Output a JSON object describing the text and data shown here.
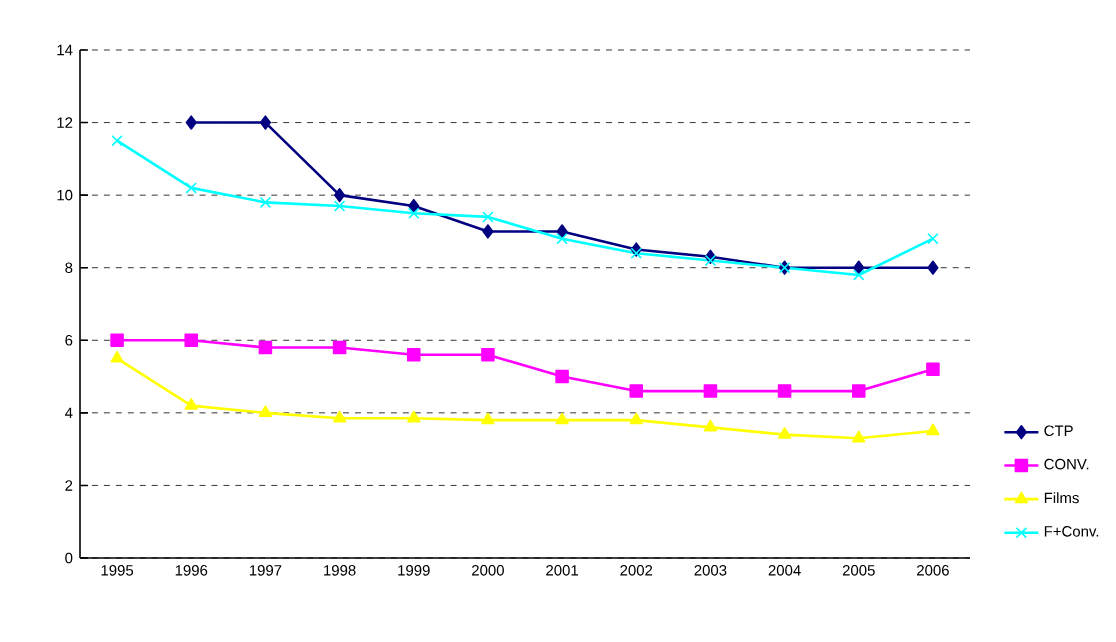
{
  "chart_data": {
    "type": "line",
    "categories": [
      "1995",
      "1996",
      "1997",
      "1998",
      "1999",
      "2000",
      "2001",
      "2002",
      "2003",
      "2004",
      "2005",
      "2006"
    ],
    "series": [
      {
        "name": "CTP",
        "color": "#000080",
        "marker": "diamond",
        "values": [
          null,
          12,
          12,
          10,
          9.7,
          9,
          9,
          8.5,
          8.3,
          8,
          8,
          8
        ]
      },
      {
        "name": "CONV.",
        "color": "#ff00ff",
        "marker": "square",
        "values": [
          6,
          6,
          5.8,
          5.8,
          5.6,
          5.6,
          5,
          4.6,
          4.6,
          4.6,
          4.6,
          5.2
        ]
      },
      {
        "name": "Films",
        "color": "#ffff00",
        "marker": "triangle",
        "values": [
          5.5,
          4.2,
          4.0,
          3.85,
          3.85,
          3.8,
          3.8,
          3.8,
          3.6,
          3.4,
          3.3,
          3.5
        ]
      },
      {
        "name": "F+Conv.",
        "color": "#00ffff",
        "marker": "cross",
        "values": [
          11.5,
          10.2,
          9.8,
          9.7,
          9.5,
          9.4,
          8.8,
          8.4,
          8.2,
          8.0,
          7.8,
          8.8
        ]
      }
    ],
    "ylim": [
      0,
      14
    ],
    "yticks": [
      0,
      2,
      4,
      6,
      8,
      10,
      12,
      14
    ],
    "grid": "y",
    "legend": "right",
    "line_style": "solid"
  }
}
